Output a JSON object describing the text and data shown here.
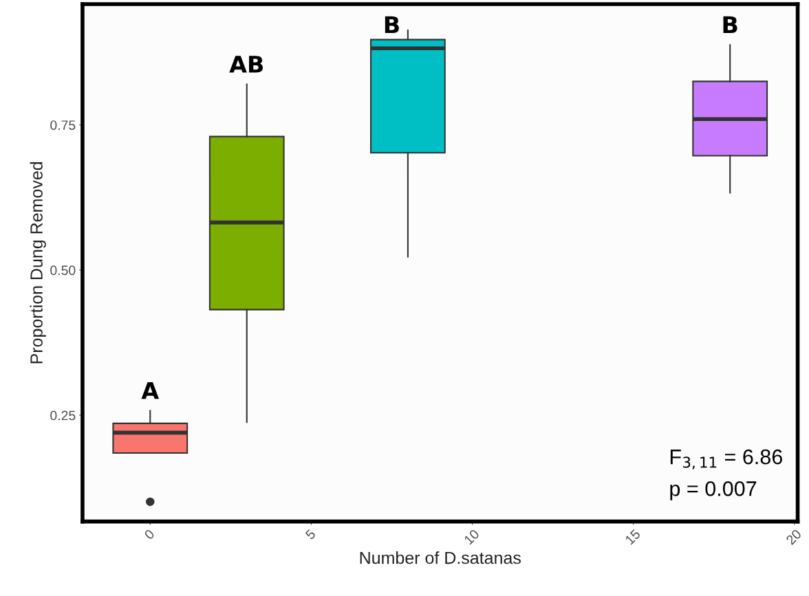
{
  "chart_data": {
    "type": "box",
    "xlabel": "Number of D.satanas",
    "ylabel": "Proportion Dung Removed",
    "x": [
      0,
      3,
      8,
      18
    ],
    "colors": [
      "#f8766d",
      "#7cae00",
      "#00bfc4",
      "#c77cff"
    ],
    "boxes": [
      {
        "low": 0.185,
        "q1": 0.185,
        "median": 0.22,
        "q3": 0.236,
        "high": 0.258,
        "outliers": [
          0.101
        ]
      },
      {
        "low": 0.238,
        "q1": 0.432,
        "median": 0.582,
        "q3": 0.73,
        "high": 0.82
      },
      {
        "low": 0.523,
        "q1": 0.702,
        "median": 0.882,
        "q3": 0.897,
        "high": 0.913
      },
      {
        "low": 0.633,
        "q1": 0.697,
        "median": 0.76,
        "q3": 0.825,
        "high": 0.888
      }
    ],
    "xlim": [
      -2.1,
      20.1
    ],
    "ylim": [
      0.067,
      0.958
    ],
    "xticks": [
      0,
      5,
      10,
      15,
      20
    ],
    "yticks": [
      {
        "value": 0.25,
        "label": "0.25"
      },
      {
        "value": 0.5,
        "label": "0.50"
      },
      {
        "value": 0.75,
        "label": "0.75"
      }
    ],
    "annotations": [
      "A",
      "AB",
      "B",
      "B",
      "F$_{3,11}$ = 6.86",
      "p = 0.007"
    ],
    "grid": false
  }
}
